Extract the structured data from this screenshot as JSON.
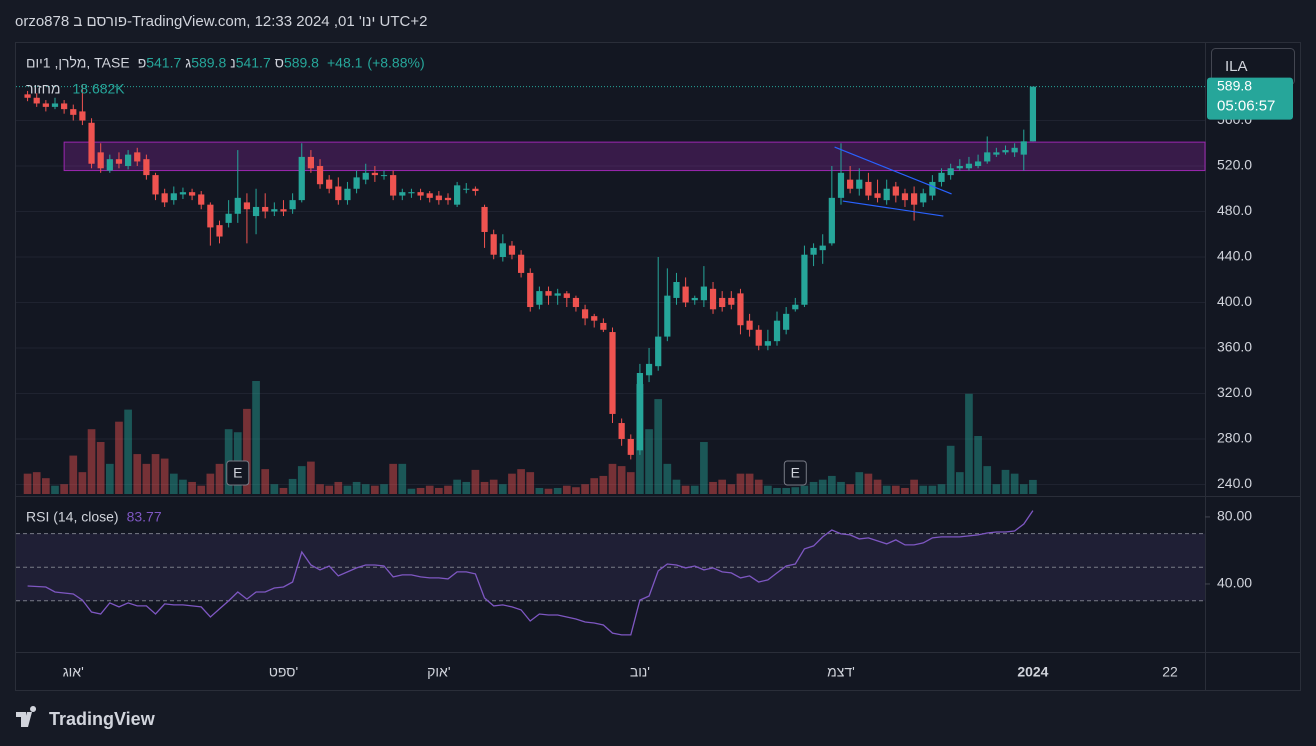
{
  "header": "orzo878 פורסם ב-TradingView.com, ינו' 01, 2024 12:33 UTC+2",
  "brand": "TradingView",
  "currency": "ILA",
  "chart_data": {
    "type": "candlestick",
    "symbol": "מלרן, 1יום, TASE",
    "ohlc_labels": [
      "פ",
      "ג",
      "נ",
      "ס"
    ],
    "change": {
      "value": 48.1,
      "label": "+48.1"
    },
    "change_percent": {
      "value": 8.88,
      "label": "(+8.88%)"
    },
    "countdown": "05:06:57",
    "up_color": "#26a69a",
    "down_color": "#ef5350",
    "grid": true,
    "categories": [
      null,
      null,
      null,
      null,
      null,
      "אוג'",
      null,
      null,
      null,
      null,
      null,
      null,
      null,
      null,
      null,
      null,
      null,
      null,
      null,
      null,
      null,
      null,
      null,
      null,
      null,
      null,
      null,
      null,
      "ספט'",
      null,
      null,
      null,
      null,
      null,
      null,
      null,
      null,
      null,
      null,
      null,
      null,
      null,
      null,
      null,
      null,
      "אוק'",
      null,
      null,
      null,
      null,
      null,
      null,
      null,
      null,
      null,
      null,
      null,
      null,
      null,
      null,
      null,
      null,
      null,
      null,
      null,
      null,
      null,
      "נוב'",
      null,
      null,
      null,
      null,
      null,
      null,
      null,
      null,
      null,
      null,
      null,
      null,
      null,
      null,
      null,
      null,
      null,
      null,
      null,
      null,
      null,
      "דצמ'",
      null,
      null,
      null,
      null,
      null,
      null,
      null,
      null,
      null,
      null,
      null,
      null,
      null,
      null,
      null,
      null,
      null,
      null,
      null,
      null,
      "2024",
      null,
      null,
      null,
      null,
      null,
      null,
      null,
      null,
      null,
      null,
      null,
      null,
      null,
      null,
      "22",
      null,
      null,
      null
    ],
    "open": [
      583,
      580,
      575,
      572,
      575,
      570,
      568,
      558,
      532,
      516,
      526,
      520,
      532,
      526,
      512,
      496,
      490,
      495,
      497,
      495,
      486,
      468,
      470,
      478,
      488,
      476,
      484,
      480,
      482,
      482,
      490,
      528,
      520,
      508,
      502,
      490,
      500,
      508,
      514,
      512,
      512,
      494,
      496,
      497,
      496,
      494,
      492,
      486,
      500,
      500,
      484,
      460,
      440,
      450,
      442,
      426,
      398,
      410,
      406,
      408,
      404,
      394,
      388,
      382,
      374,
      294,
      280,
      270,
      336,
      344,
      370,
      404,
      414,
      402,
      402,
      412,
      404,
      404,
      408,
      384,
      376,
      362,
      366,
      376,
      394,
      398,
      442,
      446,
      452,
      492,
      508,
      500,
      506,
      496,
      490,
      502,
      496,
      496,
      488,
      494,
      506,
      512,
      518,
      518,
      520,
      524,
      530,
      532,
      532,
      530,
      541.7,
      null,
      null,
      null,
      null,
      null,
      null,
      null,
      null,
      null,
      null,
      null,
      null,
      null,
      null,
      null,
      null,
      null,
      null
    ],
    "high": [
      586,
      584,
      578,
      580,
      578,
      574,
      592,
      562,
      540,
      530,
      532,
      534,
      536,
      530,
      514,
      500,
      502,
      501,
      500,
      498,
      488,
      472,
      490,
      534,
      496,
      500,
      496,
      488,
      490,
      496,
      540,
      534,
      526,
      512,
      510,
      506,
      516,
      522,
      520,
      516,
      516,
      500,
      500,
      500,
      498,
      498,
      496,
      506,
      505,
      502,
      486,
      464,
      460,
      454,
      446,
      430,
      414,
      414,
      412,
      410,
      406,
      398,
      390,
      386,
      378,
      298,
      284,
      346,
      360,
      440,
      430,
      426,
      422,
      406,
      432,
      418,
      410,
      410,
      412,
      390,
      380,
      376,
      392,
      396,
      404,
      450,
      452,
      460,
      520,
      540,
      520,
      518,
      514,
      508,
      508,
      506,
      500,
      502,
      500,
      512,
      518,
      522,
      526,
      528,
      530,
      546,
      536,
      538,
      540,
      552,
      589.8,
      null,
      null,
      null,
      null,
      null,
      null,
      null,
      null,
      null,
      null,
      null,
      null,
      null,
      null,
      null,
      null,
      null,
      null
    ],
    "low": [
      577,
      572,
      568,
      570,
      566,
      560,
      556,
      518,
      514,
      514,
      518,
      517,
      520,
      508,
      490,
      484,
      486,
      491,
      490,
      482,
      450,
      452,
      466,
      470,
      452,
      460,
      474,
      476,
      476,
      478,
      488,
      514,
      500,
      496,
      486,
      486,
      496,
      504,
      506,
      508,
      490,
      490,
      492,
      490,
      488,
      486,
      486,
      484,
      496,
      494,
      448,
      438,
      436,
      438,
      422,
      392,
      394,
      398,
      398,
      396,
      392,
      380,
      378,
      374,
      294,
      274,
      262,
      266,
      330,
      340,
      366,
      398,
      396,
      398,
      396,
      390,
      392,
      394,
      372,
      370,
      358,
      358,
      362,
      372,
      392,
      396,
      432,
      434,
      450,
      486,
      496,
      494,
      490,
      488,
      486,
      488,
      484,
      472,
      484,
      490,
      502,
      508,
      516,
      516,
      518,
      522,
      528,
      530,
      528,
      516,
      541.7,
      null,
      null,
      null,
      null,
      null,
      null,
      null,
      null,
      null,
      null,
      null,
      null,
      null,
      null,
      null,
      null,
      null,
      null
    ],
    "close": [
      580,
      575,
      572,
      575,
      570,
      565,
      560,
      522,
      518,
      526,
      522,
      530,
      524,
      512,
      495,
      488,
      496,
      497,
      494,
      486,
      466,
      458,
      478,
      492,
      482,
      484,
      480,
      482,
      480,
      490,
      528,
      518,
      504,
      500,
      490,
      500,
      510,
      514,
      512,
      512,
      494,
      497,
      497,
      494,
      492,
      490,
      490,
      503,
      500,
      498,
      462,
      442,
      452,
      442,
      426,
      396,
      410,
      406,
      408,
      404,
      396,
      386,
      384,
      376,
      302,
      280,
      266,
      338,
      346,
      370,
      406,
      418,
      400,
      404,
      414,
      394,
      396,
      398,
      380,
      376,
      362,
      366,
      384,
      390,
      398,
      442,
      448,
      450,
      492,
      514,
      500,
      508,
      494,
      492,
      500,
      494,
      490,
      486,
      496,
      506,
      514,
      518,
      520,
      522,
      524,
      532,
      532,
      534,
      536,
      541.7,
      589.8,
      null,
      null,
      null,
      null,
      null,
      null,
      null,
      null,
      null,
      null,
      null,
      null,
      null,
      null,
      null,
      null,
      null,
      null
    ],
    "ylim": [
      231.6,
      626.4
    ],
    "yticks": [
      {
        "value": 240,
        "label": "240.0"
      },
      {
        "value": 280,
        "label": "280.0"
      },
      {
        "value": 320,
        "label": "320.0"
      },
      {
        "value": 360,
        "label": "360.0"
      },
      {
        "value": 400,
        "label": "400.0"
      },
      {
        "value": 440,
        "label": "440.0"
      },
      {
        "value": 480,
        "label": "480.0"
      },
      {
        "value": 520,
        "label": "520.0"
      },
      {
        "value": 560,
        "label": "560.0"
      }
    ],
    "volume": {
      "name": "מחזור",
      "last_label": "18.682K",
      "values": [
        27,
        29,
        21,
        11,
        13,
        51,
        29,
        86,
        69,
        40,
        96,
        112,
        53,
        40,
        53,
        47,
        27,
        19,
        16,
        11,
        27,
        40,
        86,
        82,
        113,
        150,
        33,
        13,
        8,
        20,
        37,
        43,
        13,
        11,
        16,
        11,
        16,
        13,
        11,
        13,
        40,
        40,
        7,
        8,
        11,
        8,
        11,
        19,
        16,
        32,
        16,
        19,
        13,
        27,
        33,
        29,
        8,
        7,
        8,
        11,
        9,
        13,
        21,
        24,
        40,
        37,
        29,
        146,
        86,
        126,
        40,
        19,
        11,
        11,
        69,
        16,
        19,
        13,
        27,
        27,
        19,
        11,
        8,
        8,
        9,
        11,
        16,
        19,
        24,
        16,
        13,
        29,
        27,
        19,
        11,
        11,
        8,
        19,
        11,
        11,
        13,
        64,
        29,
        133,
        77,
        37,
        13,
        32,
        27,
        13,
        18.682,
        null,
        null,
        null,
        null,
        null,
        null,
        null,
        null,
        null,
        null,
        null,
        null,
        null,
        null,
        null,
        null,
        null,
        null
      ]
    },
    "rsi": {
      "name": "RSI (14, close)",
      "color": "#7e57c2",
      "ylim": [
        0.6,
        90.1
      ],
      "yticks": [
        {
          "value": 80,
          "label": "80.00"
        },
        {
          "value": 40,
          "label": "40.00"
        }
      ],
      "band": [
        30,
        70
      ],
      "midline": 50,
      "values": [
        38.8,
        38.5,
        38.2,
        35.2,
        34.6,
        34.0,
        30.4,
        23.3,
        22.1,
        28.7,
        26.3,
        28.7,
        26.9,
        26.9,
        22.1,
        28.1,
        27.5,
        27.5,
        26.9,
        26.3,
        20.3,
        25.1,
        29.9,
        35.2,
        31.0,
        35.2,
        35.2,
        37.6,
        38.2,
        41.2,
        59.1,
        51.3,
        48.4,
        50.7,
        44.8,
        47.2,
        49.6,
        51.3,
        51.3,
        50.7,
        44.2,
        45.4,
        45.4,
        44.2,
        43.6,
        43.6,
        43.0,
        47.2,
        47.2,
        46.0,
        31.6,
        26.9,
        27.5,
        26.3,
        24.5,
        17.9,
        22.1,
        21.5,
        21.5,
        20.3,
        19.1,
        17.3,
        16.7,
        15.5,
        10.7,
        9.6,
        9.6,
        30.4,
        32.8,
        47.8,
        51.9,
        51.3,
        49.6,
        50.7,
        48.4,
        49.6,
        47.2,
        46.6,
        43.6,
        44.8,
        41.2,
        42.4,
        46.6,
        50.7,
        51.9,
        60.9,
        62.7,
        68.1,
        72.2,
        69.9,
        69.3,
        66.9,
        67.5,
        65.7,
        63.9,
        66.3,
        63.3,
        63.3,
        64.5,
        67.5,
        68.1,
        68.1,
        68.1,
        68.7,
        69.3,
        70.4,
        71.0,
        71.0,
        71.6,
        75.8,
        83.77,
        null,
        null,
        null,
        null,
        null,
        null,
        null,
        null,
        null,
        null,
        null,
        null,
        null,
        null,
        null,
        null,
        null,
        null
      ]
    },
    "zone": {
      "from": 516,
      "to": 541,
      "start": 4,
      "color": "#9c27b0"
    },
    "trendlines": [
      {
        "color": "#2962ff",
        "points": [
          [
            88.3,
            536.7
          ],
          [
            101.1,
            495.4
          ]
        ]
      },
      {
        "color": "#2962ff",
        "points": [
          [
            89.2,
            489.2
          ],
          [
            100.2,
            476
          ]
        ]
      }
    ],
    "events": [
      {
        "label": "E",
        "at": 23
      },
      {
        "label": "E",
        "at": 84
      }
    ]
  }
}
